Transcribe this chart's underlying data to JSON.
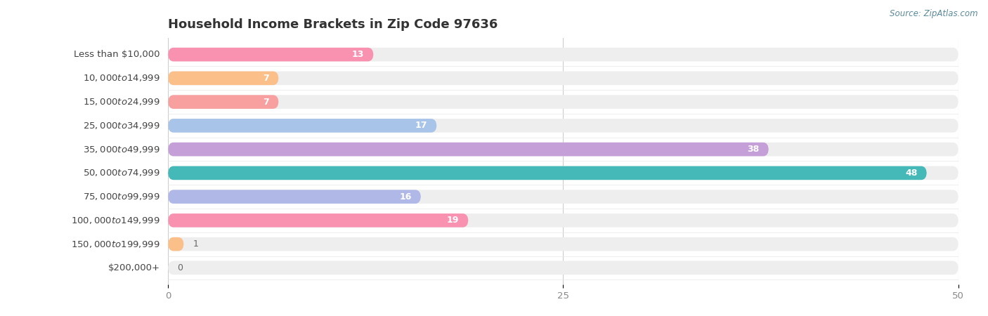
{
  "title": "Household Income Brackets in Zip Code 97636",
  "source": "Source: ZipAtlas.com",
  "categories": [
    "Less than $10,000",
    "$10,000 to $14,999",
    "$15,000 to $24,999",
    "$25,000 to $34,999",
    "$35,000 to $49,999",
    "$50,000 to $74,999",
    "$75,000 to $99,999",
    "$100,000 to $149,999",
    "$150,000 to $199,999",
    "$200,000+"
  ],
  "values": [
    13,
    7,
    7,
    17,
    38,
    48,
    16,
    19,
    1,
    0
  ],
  "colors": [
    "#F892B0",
    "#FBBF8A",
    "#F8A0A0",
    "#A8C4E8",
    "#C49FD8",
    "#45B8B8",
    "#B0B8E8",
    "#F892B0",
    "#FBBF8A",
    "#F8A0A0"
  ],
  "xlim": [
    0,
    50
  ],
  "xticks": [
    0,
    25,
    50
  ],
  "background_color": "#ffffff",
  "bar_bg_color": "#eeeeee",
  "title_fontsize": 13,
  "label_fontsize": 9.5,
  "value_fontsize": 9,
  "bar_height": 0.58
}
